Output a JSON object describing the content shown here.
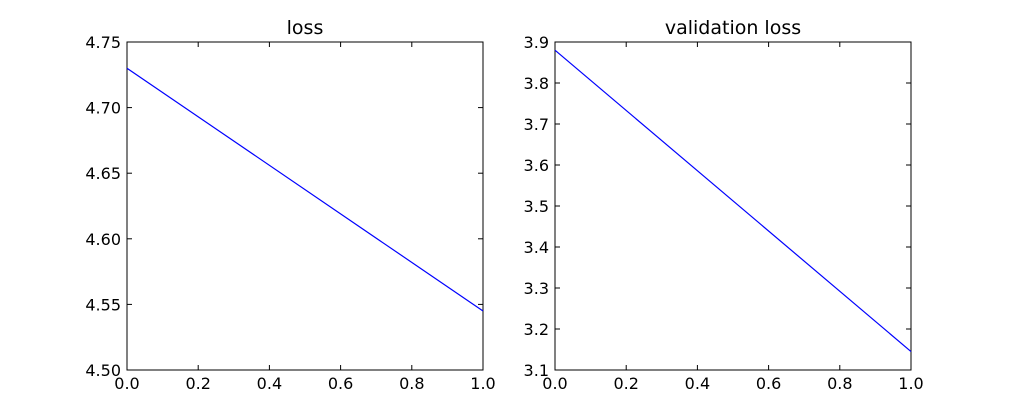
{
  "chart_data": [
    {
      "type": "line",
      "title": "loss",
      "xlabel": "",
      "ylabel": "",
      "xlim": [
        0.0,
        1.0
      ],
      "ylim": [
        4.5,
        4.75
      ],
      "x_ticks": [
        "0.0",
        "0.2",
        "0.4",
        "0.6",
        "0.8",
        "1.0"
      ],
      "y_ticks": [
        "4.50",
        "4.55",
        "4.60",
        "4.65",
        "4.70",
        "4.75"
      ],
      "grid": false,
      "series": [
        {
          "x": [
            0.0,
            1.0
          ],
          "y": [
            4.73,
            4.545
          ],
          "color": "#0000ff"
        }
      ]
    },
    {
      "type": "line",
      "title": "validation loss",
      "xlabel": "",
      "ylabel": "",
      "xlim": [
        0.0,
        1.0
      ],
      "ylim": [
        3.1,
        3.9
      ],
      "x_ticks": [
        "0.0",
        "0.2",
        "0.4",
        "0.6",
        "0.8",
        "1.0"
      ],
      "y_ticks": [
        "3.1",
        "3.2",
        "3.3",
        "3.4",
        "3.5",
        "3.6",
        "3.7",
        "3.8",
        "3.9"
      ],
      "grid": false,
      "series": [
        {
          "x": [
            0.0,
            1.0
          ],
          "y": [
            3.88,
            3.145
          ],
          "color": "#0000ff"
        }
      ]
    }
  ]
}
